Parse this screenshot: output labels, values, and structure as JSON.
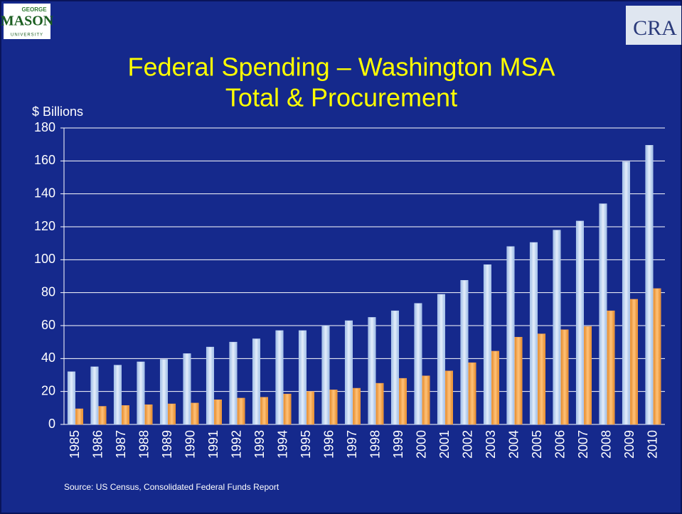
{
  "logos": {
    "left": {
      "top": "GEORGE",
      "main": "MASON",
      "bottom": "UNIVERSITY"
    },
    "right": "CRA"
  },
  "chart_data": {
    "type": "bar",
    "title": "Federal Spending – Washington MSA",
    "subtitle": "Total & Procurement",
    "y_label": "$ Billions",
    "source": "Source: US Census, Consolidated Federal Funds Report",
    "categories": [
      "1985",
      "1986",
      "1987",
      "1988",
      "1989",
      "1990",
      "1991",
      "1992",
      "1993",
      "1994",
      "1995",
      "1996",
      "1997",
      "1998",
      "1999",
      "2000",
      "2001",
      "2002",
      "2003",
      "2004",
      "2005",
      "2006",
      "2007",
      "2008",
      "2009",
      "2010"
    ],
    "series": [
      {
        "color": "#c2d7f2",
        "values": [
          32,
          35,
          36,
          38,
          39.5,
          43,
          47,
          50,
          52,
          57,
          57,
          60,
          63,
          65,
          69,
          73.5,
          79,
          87.5,
          97,
          108,
          110.5,
          118,
          123.5,
          134,
          159.5,
          169.5
        ]
      },
      {
        "color": "#f7a44c",
        "values": [
          9.5,
          11,
          11.5,
          12,
          12.5,
          13,
          15,
          16,
          16.5,
          18.5,
          20,
          21,
          22,
          25,
          28,
          29.5,
          32.5,
          37.5,
          44.5,
          53,
          55,
          57.5,
          59.5,
          69,
          76,
          82.5
        ]
      }
    ],
    "ylim": [
      0,
      180
    ],
    "yticks": [
      0,
      20,
      40,
      60,
      80,
      100,
      120,
      140,
      160,
      180
    ],
    "grid": true
  }
}
